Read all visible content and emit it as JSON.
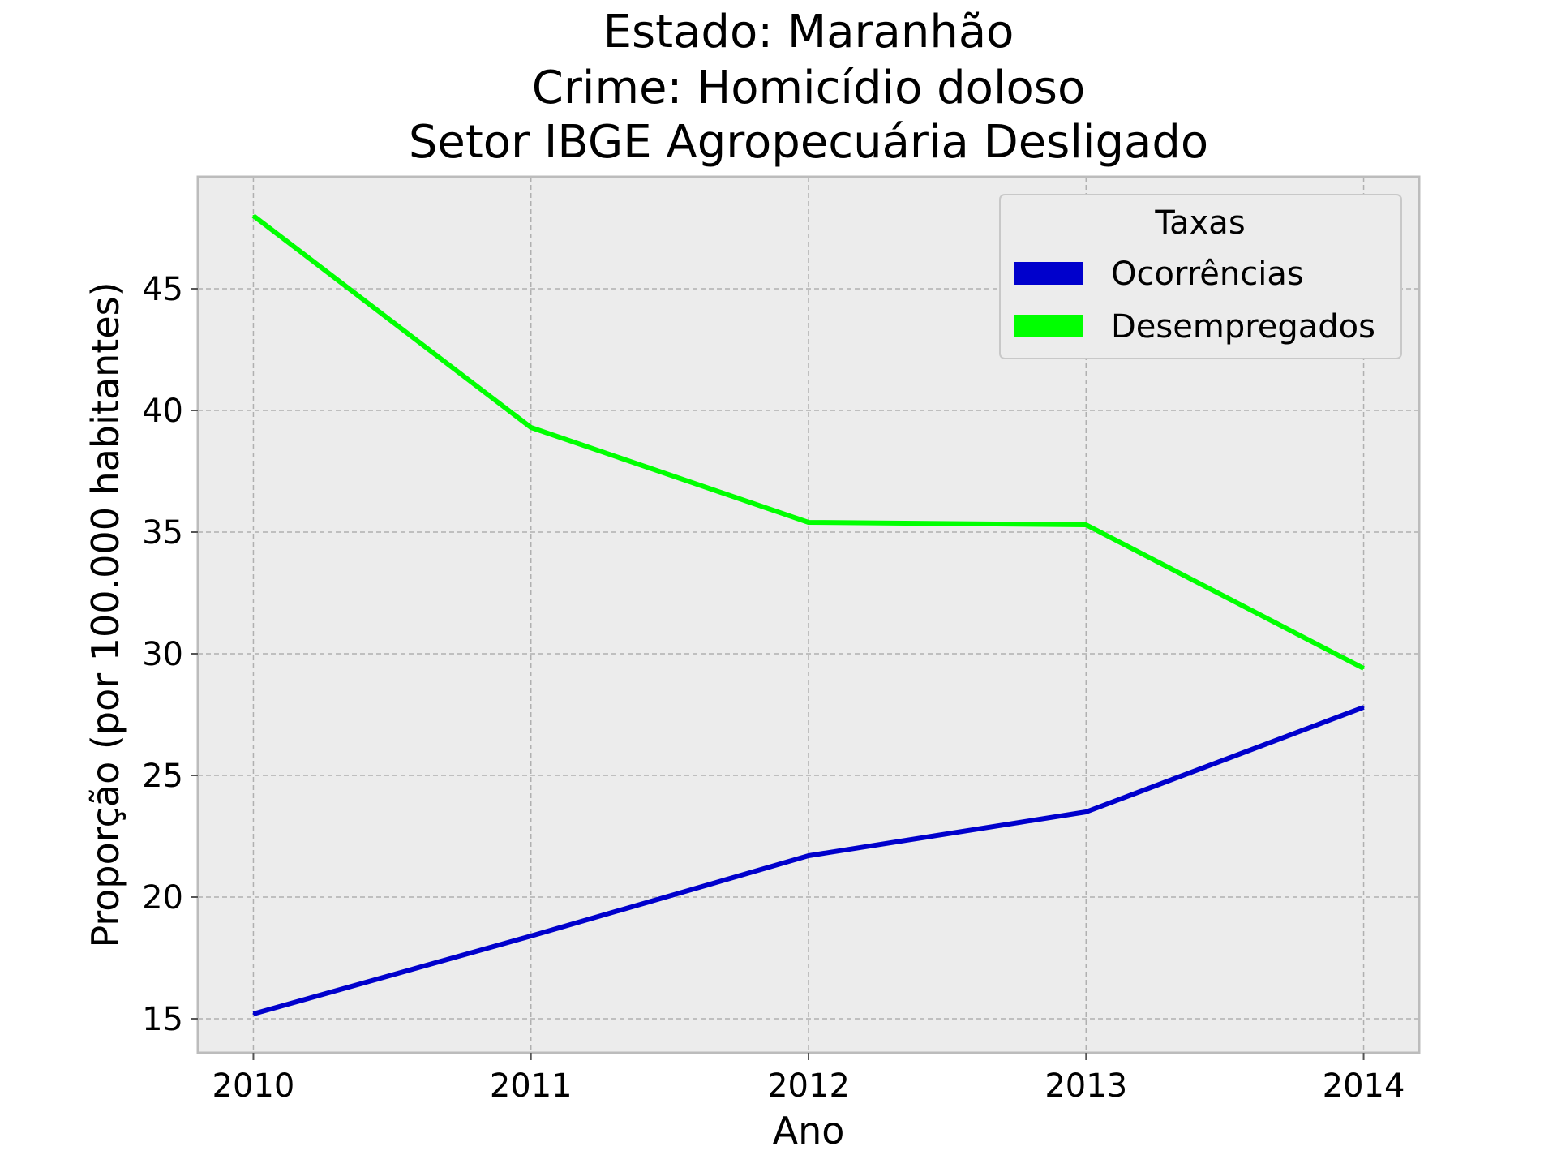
{
  "chart_data": {
    "type": "line",
    "title_lines": [
      "Estado: Maranhão",
      "Crime: Homicídio doloso",
      "Setor IBGE  Agropecuária   Desligado"
    ],
    "xlabel": "Ano",
    "ylabel": "Proporção (por 100.000 habitantes)",
    "x": [
      2010,
      2011,
      2012,
      2013,
      2014
    ],
    "x_ticks": [
      "2010",
      "2011",
      "2012",
      "2013",
      "2014"
    ],
    "y_ticks": [
      "15",
      "20",
      "25",
      "30",
      "35",
      "40",
      "45"
    ],
    "ylim": [
      13.6,
      49.6
    ],
    "xlim": [
      2009.8,
      2014.2
    ],
    "grid": true,
    "legend": {
      "title": "Taxas",
      "placement": "top-right"
    },
    "series": [
      {
        "name": "Ocorrências",
        "color": "#0000cc",
        "values": [
          15.2,
          18.4,
          21.7,
          23.5,
          27.8
        ]
      },
      {
        "name": "Desempregados",
        "color": "#00ff00",
        "values": [
          48.0,
          39.3,
          35.4,
          35.3,
          29.4
        ]
      }
    ],
    "background": "#ececec",
    "grid_color": "#b0b0b0",
    "frame_color": "#bcbcbc"
  }
}
